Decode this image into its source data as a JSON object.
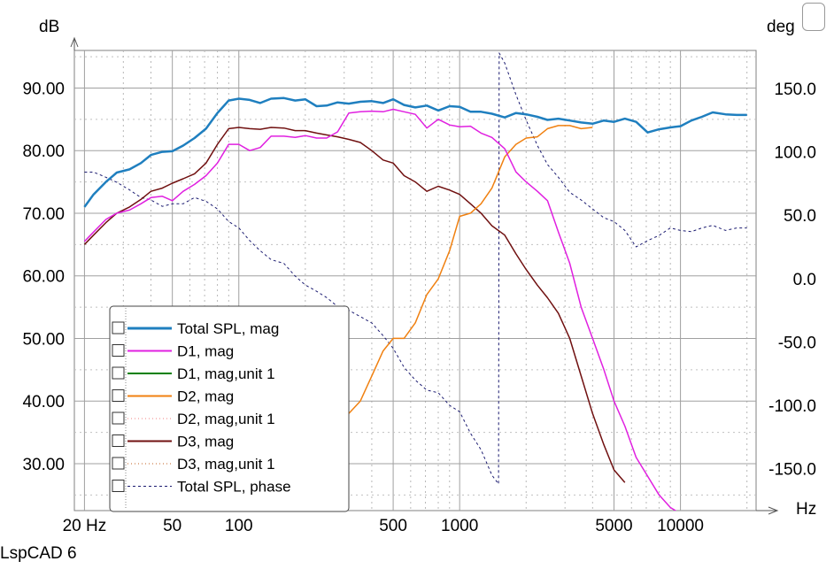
{
  "footer": "LspCAD 6",
  "chart_data": {
    "type": "line",
    "ylabel_left": "dB",
    "ylabel_right": "deg",
    "xlabel": "Hz",
    "x_scale": "log",
    "xlim": [
      18,
      22000
    ],
    "ylim_left": [
      22.5,
      96
    ],
    "ylim_right": [
      -183,
      180
    ],
    "grid": true,
    "x_ticks": [
      20,
      50,
      100,
      500,
      1000,
      5000,
      10000
    ],
    "x_tick_labels": [
      "20 Hz",
      "50",
      "100",
      "500",
      "1000",
      "5000",
      "10000"
    ],
    "y_left_ticks": [
      30,
      40,
      50,
      60,
      70,
      80,
      90
    ],
    "y_left_tick_labels": [
      "30.00",
      "40.00",
      "50.00",
      "60.00",
      "70.00",
      "80.00",
      "90.00"
    ],
    "y_right_ticks": [
      -150,
      -100,
      -50,
      0,
      50,
      100,
      150
    ],
    "y_right_tick_labels": [
      "-150.0",
      "-100.0",
      "-50.0",
      "0.0",
      "50.0",
      "100.0",
      "150.0"
    ],
    "legend_position": "bottom-left",
    "colors": {
      "total": "#1f7fbf",
      "d1": "#e020e0",
      "d1u": "#008000",
      "d2": "#f08010",
      "d2u": "#f08080",
      "d3": "#701010",
      "d3u": "#c06020",
      "phase": "#1a1a70"
    },
    "series": [
      {
        "name": "Total SPL, mag",
        "axis": "left",
        "color": "#1f7fbf",
        "style": "solid",
        "width": 2.5,
        "x": [
          20,
          22,
          25,
          28,
          32,
          36,
          40,
          45,
          50,
          56,
          63,
          71,
          80,
          90,
          100,
          112,
          125,
          140,
          160,
          180,
          200,
          225,
          250,
          280,
          315,
          355,
          400,
          450,
          500,
          560,
          630,
          710,
          800,
          900,
          1000,
          1120,
          1250,
          1400,
          1600,
          1800,
          2000,
          2250,
          2500,
          2800,
          3150,
          3550,
          4000,
          4500,
          5000,
          5600,
          6300,
          7100,
          8000,
          9000,
          10000,
          11200,
          12500,
          14000,
          16000,
          18000,
          20000
        ],
        "y": [
          71,
          73,
          75,
          76.5,
          77,
          78,
          79.3,
          79.8,
          79.9,
          80.8,
          82,
          83.5,
          86,
          88,
          88.3,
          88.1,
          87.6,
          88.3,
          88.4,
          88,
          88.2,
          87.1,
          87.2,
          87.7,
          87.5,
          87.8,
          87.9,
          87.6,
          88.2,
          87.3,
          86.9,
          87.2,
          86.4,
          87.1,
          87,
          86.2,
          86.2,
          85.9,
          85.3,
          86,
          85.8,
          85.4,
          84.9,
          85.1,
          84.8,
          84.5,
          84.3,
          84.8,
          84.6,
          85.1,
          84.6,
          82.9,
          83.4,
          83.7,
          83.9,
          84.8,
          85.4,
          86.1,
          85.8,
          85.7,
          85.7
        ]
      },
      {
        "name": "D1, mag",
        "axis": "left",
        "color": "#e020e0",
        "style": "solid",
        "width": 1.5,
        "x": [
          20,
          22,
          25,
          28,
          32,
          36,
          40,
          45,
          50,
          56,
          63,
          71,
          80,
          90,
          100,
          112,
          125,
          140,
          160,
          180,
          200,
          225,
          250,
          280,
          315,
          355,
          400,
          450,
          500,
          560,
          630,
          710,
          800,
          900,
          1000,
          1120,
          1250,
          1400,
          1600,
          1800,
          2000,
          2250,
          2500,
          2800,
          3150,
          3550,
          4000,
          4500,
          5000,
          5600,
          6300,
          7100,
          8000,
          9000,
          10000
        ],
        "y": [
          65.5,
          67,
          69,
          70,
          70.5,
          71.5,
          72.5,
          72.7,
          72,
          73.5,
          74.6,
          76,
          78,
          81,
          81,
          80,
          80.5,
          82.3,
          82.3,
          82.1,
          82.4,
          82,
          82,
          83,
          86,
          86.2,
          86.3,
          86.2,
          86.6,
          86.2,
          85.8,
          83.6,
          85,
          84.1,
          83.8,
          83.9,
          82.8,
          82.1,
          80.3,
          76.6,
          75,
          73.5,
          72,
          67,
          62,
          55,
          50,
          45,
          40,
          36,
          31,
          28,
          25,
          23,
          22
        ]
      },
      {
        "name": "D1, mag,unit 1",
        "axis": "left",
        "color": "#008000",
        "style": "solid",
        "width": 1.5,
        "x": [],
        "y": []
      },
      {
        "name": "D2, mag",
        "axis": "left",
        "color": "#f08010",
        "style": "solid",
        "width": 1.5,
        "x": [
          280,
          315,
          355,
          400,
          450,
          500,
          560,
          630,
          710,
          800,
          900,
          1000,
          1120,
          1250,
          1400,
          1600,
          1800,
          2000,
          2250,
          2500,
          2800,
          3150,
          3550,
          4000
        ],
        "y": [
          35,
          38,
          40,
          44,
          48,
          50,
          50,
          52.5,
          57,
          59.5,
          64,
          69.5,
          70,
          71.5,
          74,
          79,
          81,
          82,
          82.2,
          83.5,
          84,
          84,
          83.5,
          83.7
        ]
      },
      {
        "name": "D2, mag,unit 1",
        "axis": "left",
        "color": "#f08080",
        "style": "dotted",
        "width": 1,
        "x": [],
        "y": []
      },
      {
        "name": "D3, mag",
        "axis": "left",
        "color": "#701010",
        "style": "solid",
        "width": 1.5,
        "x": [
          20,
          22,
          25,
          28,
          32,
          36,
          40,
          45,
          50,
          56,
          63,
          71,
          80,
          90,
          100,
          112,
          125,
          140,
          160,
          180,
          200,
          225,
          250,
          280,
          315,
          355,
          400,
          450,
          500,
          560,
          630,
          710,
          800,
          900,
          1000,
          1120,
          1250,
          1400,
          1600,
          1800,
          2000,
          2250,
          2500,
          2800,
          3150,
          3550,
          4000,
          4500,
          5000,
          5600
        ],
        "y": [
          65,
          66.5,
          68.5,
          70,
          71,
          72.2,
          73.5,
          74,
          74.8,
          75.5,
          76.3,
          78,
          81,
          83.5,
          83.7,
          83.5,
          83.4,
          83.7,
          83.6,
          83.2,
          83.2,
          82.8,
          82.5,
          82.2,
          81.8,
          81.3,
          80,
          78.5,
          78,
          76,
          75,
          73.5,
          74.3,
          73.7,
          73,
          71.5,
          70,
          68,
          66.5,
          63.5,
          61,
          58.5,
          56.5,
          54,
          50,
          44,
          38,
          33,
          29,
          27
        ]
      },
      {
        "name": "D3, mag,unit 1",
        "axis": "left",
        "color": "#c06020",
        "style": "dotted",
        "width": 1,
        "x": [],
        "y": []
      },
      {
        "name": "Total SPL, phase",
        "axis": "right",
        "color": "#1a1a70",
        "style": "dashed",
        "width": 1,
        "x": [
          20,
          22,
          25,
          28,
          32,
          36,
          40,
          45,
          50,
          56,
          63,
          71,
          80,
          90,
          100,
          112,
          125,
          140,
          160,
          180,
          200,
          225,
          250,
          280,
          315,
          355,
          400,
          450,
          500,
          560,
          630,
          710,
          800,
          900,
          1000,
          1120,
          1250,
          1400,
          1500,
          1510,
          1600,
          1800,
          2000,
          2250,
          2500,
          2800,
          3150,
          3550,
          4000,
          4500,
          5000,
          5600,
          6300,
          7100,
          8000,
          9000,
          10000,
          11200,
          12500,
          14000,
          16000,
          18000,
          20000
        ],
        "y": [
          84,
          84,
          80,
          76,
          70,
          64,
          62,
          57,
          59,
          59,
          64,
          61,
          55,
          45,
          40,
          30,
          22,
          15,
          12,
          2,
          -5,
          -10,
          -15,
          -22,
          -25,
          -30,
          -35,
          -45,
          -55,
          -70,
          -80,
          -88,
          -90,
          -100,
          -105,
          -122,
          -135,
          -155,
          -162,
          178,
          170,
          145,
          125,
          105,
          90,
          80,
          68,
          62,
          55,
          48,
          45,
          38,
          25,
          30,
          34,
          40,
          38,
          37,
          40,
          42,
          38,
          40,
          40
        ]
      }
    ]
  }
}
